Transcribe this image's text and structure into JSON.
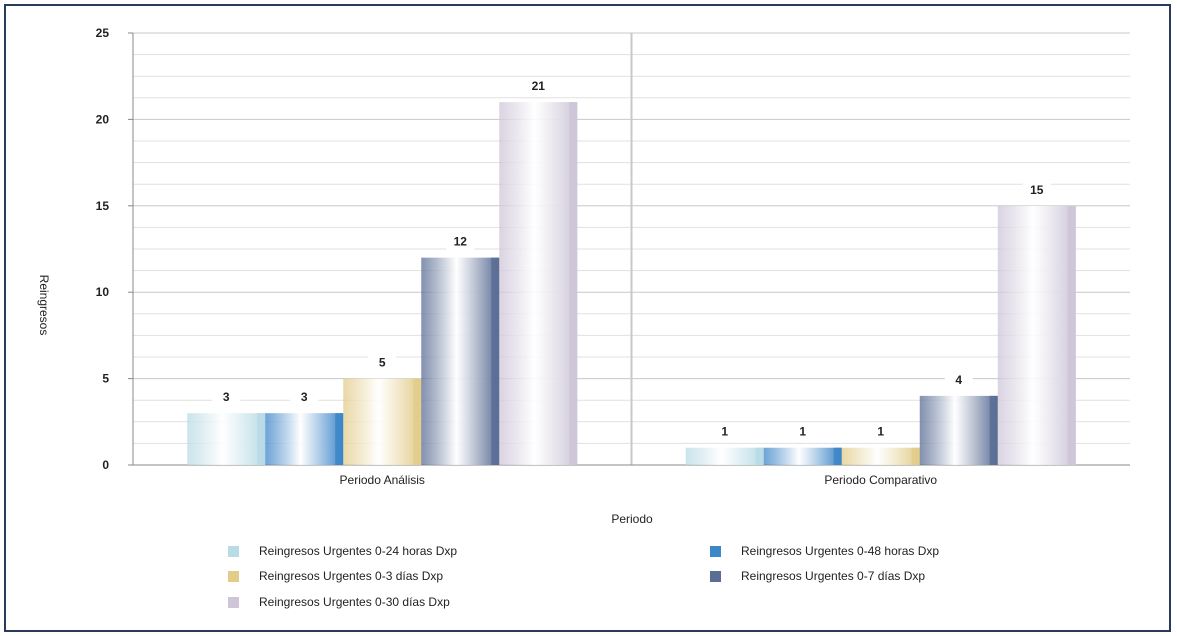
{
  "chart_data": {
    "type": "bar",
    "categories": [
      "Periodo Análisis",
      "Periodo Comparativo"
    ],
    "series": [
      {
        "name": "Reingresos Urgentes 0-24 horas Dxp",
        "values": [
          3,
          1
        ],
        "color": "#b9dbe6"
      },
      {
        "name": "Reingresos Urgentes 0-48 horas Dxp",
        "values": [
          3,
          1
        ],
        "color": "#3d86c8"
      },
      {
        "name": "Reingresos Urgentes 0-3 días Dxp",
        "values": [
          5,
          1
        ],
        "color": "#e2cc8a"
      },
      {
        "name": "Reingresos Urgentes 0-7 días Dxp",
        "values": [
          12,
          4
        ],
        "color": "#5a6d95"
      },
      {
        "name": "Reingresos Urgentes 0-30 días Dxp",
        "values": [
          21,
          15
        ],
        "color": "#cec6d8"
      }
    ],
    "xlabel": "Periodo",
    "ylabel": "Reingresos",
    "ylim": [
      0,
      25
    ],
    "yticks": [
      0,
      5,
      10,
      15,
      20,
      25
    ],
    "grid": true,
    "legend_position": "bottom"
  }
}
